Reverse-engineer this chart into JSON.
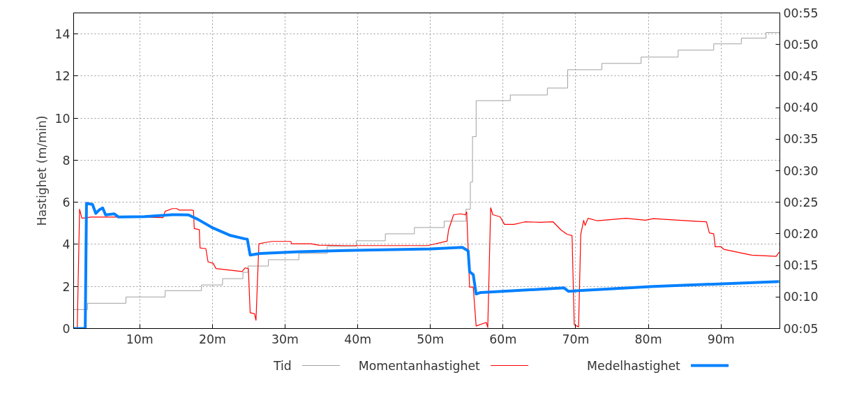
{
  "chart_data": {
    "type": "line",
    "ylabel": "Hastighet (m/min)",
    "xlim": [
      0.9,
      98.1
    ],
    "xticks": [
      {
        "value": 10,
        "label": "10m"
      },
      {
        "value": 20,
        "label": "20m"
      },
      {
        "value": 30,
        "label": "30m"
      },
      {
        "value": 40,
        "label": "40m"
      },
      {
        "value": 50,
        "label": "50m"
      },
      {
        "value": 60,
        "label": "60m"
      },
      {
        "value": 70,
        "label": "70m"
      },
      {
        "value": 80,
        "label": "80m"
      },
      {
        "value": 90,
        "label": "90m"
      }
    ],
    "ylim": [
      0,
      15
    ],
    "yticks": [
      0,
      2,
      4,
      6,
      8,
      10,
      12,
      14
    ],
    "y2lim": [
      5,
      55
    ],
    "y2ticks": [
      {
        "value": 5,
        "label": "00:05"
      },
      {
        "value": 10,
        "label": "00:10"
      },
      {
        "value": 15,
        "label": "00:15"
      },
      {
        "value": 20,
        "label": "00:20"
      },
      {
        "value": 25,
        "label": "00:25"
      },
      {
        "value": 30,
        "label": "00:30"
      },
      {
        "value": 35,
        "label": "00:35"
      },
      {
        "value": 40,
        "label": "00:40"
      },
      {
        "value": 45,
        "label": "00:45"
      },
      {
        "value": 50,
        "label": "00:50"
      },
      {
        "value": 55,
        "label": "00:55"
      }
    ],
    "grid": true,
    "legend": "bottom",
    "line_style": "solid",
    "series": [
      {
        "name": "Tid",
        "type": "step",
        "axis": "y2",
        "color": "#a0a0a0",
        "x": [
          0.9,
          2.8,
          8.1,
          13.5,
          18.5,
          21.4,
          24.2,
          24.9,
          27.7,
          31.9,
          35.8,
          39.8,
          43.8,
          47.8,
          51.9,
          54.9,
          55.5,
          55.8,
          56.3,
          61.0,
          66.1,
          68.9,
          73.6,
          79.0,
          84.1,
          89.0,
          92.8,
          96.2,
          98.1
        ],
        "values": [
          8.0,
          9.0,
          10.0,
          11.0,
          11.9,
          12.9,
          13.9,
          14.9,
          15.9,
          16.9,
          18.0,
          18.9,
          20.0,
          21.0,
          22.0,
          23.9,
          28.2,
          35.4,
          41.1,
          42.0,
          43.1,
          46.0,
          47.0,
          48.0,
          49.1,
          50.1,
          51.0,
          51.9,
          51.9
        ]
      },
      {
        "name": "Momentanhastighet",
        "color": "#ff0000",
        "x": [
          0.9,
          1.4,
          1.72,
          2.03,
          2.19,
          3.3,
          10.65,
          13.2,
          13.5,
          14.5,
          15.1,
          15.4,
          17.2,
          17.4,
          17.5,
          18.2,
          18.3,
          19.1,
          19.4,
          20.1,
          20.5,
          24.1,
          24.5,
          24.95,
          25.2,
          25.8,
          26.0,
          26.4,
          27.3,
          28.2,
          30.8,
          30.9,
          33.6,
          34.6,
          38.4,
          49.6,
          52.3,
          52.5,
          53.2,
          54.2,
          54.8,
          55.0,
          55.4,
          55.9,
          56.3,
          57.7,
          57.9,
          58.3,
          58.6,
          59.6,
          60.2,
          61.5,
          63.0,
          65.0,
          66.9,
          68.0,
          68.8,
          69.5,
          69.8,
          70.4,
          70.7,
          71.1,
          71.3,
          71.7,
          73.0,
          76.9,
          79.6,
          80.7,
          86.9,
          88.0,
          88.4,
          89.0,
          89.2,
          90.0,
          90.4,
          94.2,
          97.6,
          98.0
        ],
        "values": [
          0,
          0,
          5.67,
          5.25,
          5.25,
          5.3,
          5.3,
          5.27,
          5.57,
          5.7,
          5.7,
          5.63,
          5.63,
          5.6,
          4.75,
          4.7,
          3.83,
          3.8,
          3.17,
          3.1,
          2.85,
          2.71,
          2.88,
          2.85,
          0.75,
          0.7,
          0.39,
          4.03,
          4.09,
          4.14,
          4.14,
          4.03,
          4.03,
          3.96,
          3.94,
          3.94,
          4.15,
          4.68,
          5.41,
          5.45,
          5.4,
          5.54,
          1.97,
          1.97,
          0.12,
          0.29,
          0.05,
          5.74,
          5.41,
          5.31,
          4.95,
          4.95,
          5.07,
          5.05,
          5.07,
          4.68,
          4.48,
          4.42,
          0.18,
          0.08,
          4.48,
          5.14,
          4.9,
          5.24,
          5.12,
          5.24,
          5.15,
          5.22,
          5.09,
          5.07,
          4.54,
          4.5,
          3.89,
          3.89,
          3.76,
          3.49,
          3.43,
          3.63
        ]
      },
      {
        "name": "Medelhastighet",
        "color": "#0080ff",
        "x": [
          0.9,
          2.5,
          2.67,
          3.5,
          3.95,
          4.4,
          4.9,
          5.3,
          6.5,
          7.1,
          10.65,
          14.5,
          16.7,
          18.0,
          19.9,
          22.5,
          24.5,
          24.8,
          25.2,
          26.6,
          32.0,
          38.4,
          50.0,
          54.4,
          55.2,
          55.4,
          55.9,
          56.3,
          56.9,
          68.4,
          69.0,
          70.4,
          80.7,
          98.0
        ],
        "values": [
          0,
          0,
          5.95,
          5.9,
          5.47,
          5.63,
          5.73,
          5.4,
          5.45,
          5.3,
          5.32,
          5.41,
          5.4,
          5.19,
          4.81,
          4.42,
          4.26,
          4.25,
          3.49,
          3.57,
          3.65,
          3.71,
          3.78,
          3.86,
          3.69,
          2.7,
          2.56,
          1.64,
          1.71,
          1.93,
          1.77,
          1.8,
          2.0,
          2.23
        ]
      }
    ]
  }
}
